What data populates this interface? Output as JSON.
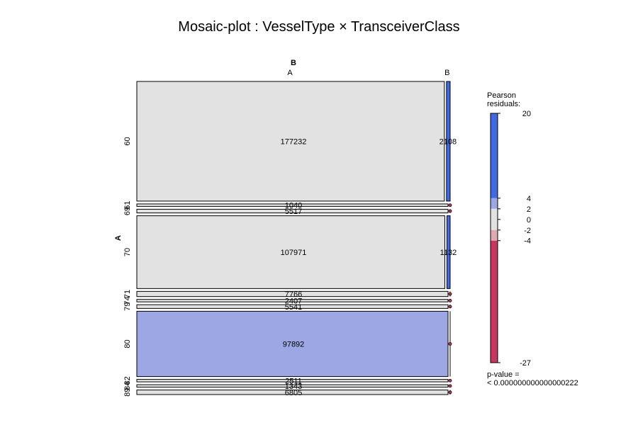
{
  "chart_data": {
    "type": "mosaic",
    "title": "Mosaic-plot : VesselType × TransceiverClass",
    "row_variable": "A",
    "col_variable": "B",
    "col_categories": [
      "A",
      "B"
    ],
    "rows": [
      {
        "label": "60",
        "counts": [
          177232,
          2108
        ],
        "residuals": [
          0,
          20
        ]
      },
      {
        "label": "61",
        "counts": [
          1040,
          0
        ],
        "residuals": [
          0,
          -5
        ]
      },
      {
        "label": "69",
        "counts": [
          5517,
          0
        ],
        "residuals": [
          0,
          -8
        ]
      },
      {
        "label": "70",
        "counts": [
          107971,
          1132
        ],
        "residuals": [
          0,
          12
        ]
      },
      {
        "label": "71",
        "counts": [
          7766,
          0
        ],
        "residuals": [
          0,
          -10
        ]
      },
      {
        "label": "74",
        "counts": [
          2407,
          0
        ],
        "residuals": [
          0,
          -6
        ]
      },
      {
        "label": "79",
        "counts": [
          5541,
          0
        ],
        "residuals": [
          0,
          -8
        ]
      },
      {
        "label": "80",
        "counts": [
          97892,
          0
        ],
        "residuals": [
          2.5,
          -27
        ]
      },
      {
        "label": "82",
        "counts": [
          2511,
          0
        ],
        "residuals": [
          0,
          -6
        ]
      },
      {
        "label": "84",
        "counts": [
          1343,
          0
        ],
        "residuals": [
          0,
          -5
        ]
      },
      {
        "label": "89",
        "counts": [
          6805,
          0
        ],
        "residuals": [
          0,
          -9
        ]
      }
    ],
    "legend": {
      "title_line1": "Pearson",
      "title_line2": "residuals:",
      "max": 20,
      "min": -27,
      "ticks": [
        "20",
        "4",
        "2",
        "0",
        "-2",
        "-4",
        "-27"
      ],
      "colors": {
        "strong_pos": "#4169e1",
        "mild_pos": "#9ca7e3",
        "neutral": "#e2e2e2",
        "mild_neg": "#ddaaaf",
        "strong_neg": "#c7385e"
      }
    },
    "pvalue_line1": "p-value =",
    "pvalue_line2": "< 0.000000000000000222"
  }
}
